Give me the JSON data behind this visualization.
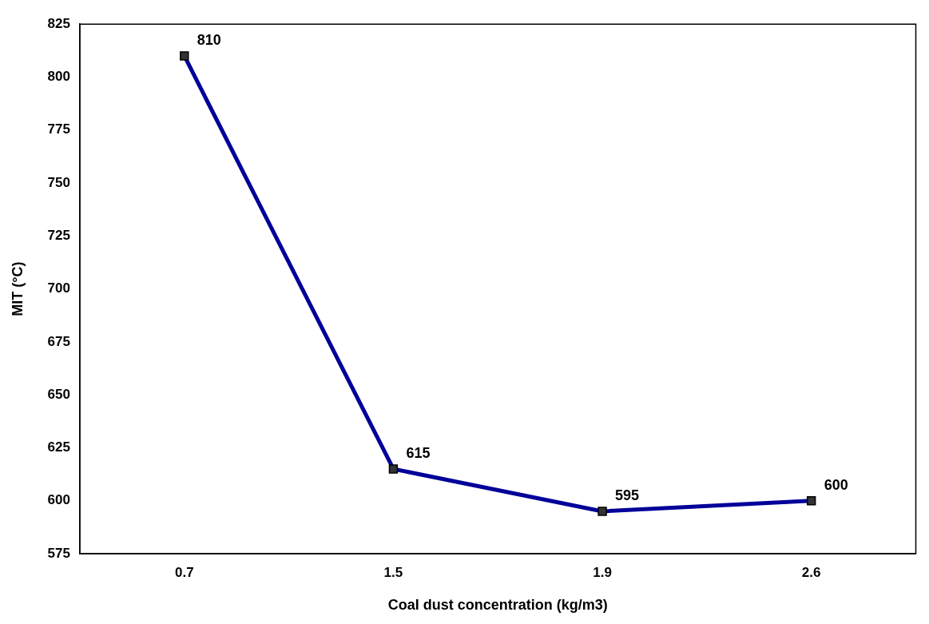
{
  "chart_data": {
    "type": "line",
    "xlabel": "Coal dust concentration (kg/m3)",
    "ylabel": "MIT (°C)",
    "categories": [
      "0.7",
      "1.5",
      "1.9",
      "2.6"
    ],
    "series": [
      {
        "color": "#000099",
        "values": [
          810,
          615,
          595,
          600
        ]
      }
    ],
    "ylim": [
      575,
      825
    ],
    "yticks": [
      575,
      600,
      625,
      650,
      675,
      700,
      725,
      750,
      775,
      800,
      825
    ],
    "grid": false,
    "legend": false,
    "marker": "square",
    "line_style": "solid",
    "data_labels": true
  }
}
